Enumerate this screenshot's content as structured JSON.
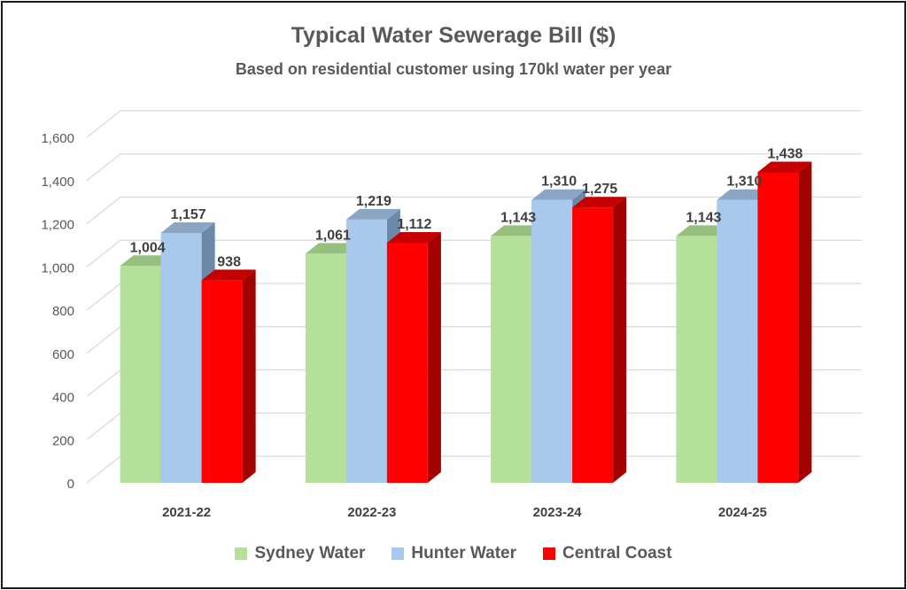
{
  "chart_data": {
    "type": "bar",
    "title": "Typical Water Sewerage Bill ($)",
    "subtitle": "Based on residential customer using 170kl water per year",
    "categories": [
      "2021-22",
      "2022-23",
      "2023-24",
      "2024-25"
    ],
    "series": [
      {
        "name": "Sydney Water",
        "values": [
          1004,
          1061,
          1143,
          1143
        ],
        "labels": [
          "1,004",
          "1,061",
          "1,143",
          "1,143"
        ],
        "color": "#b4e09a",
        "side": "#7fa96a",
        "top": "#97c07e"
      },
      {
        "name": "Hunter Water",
        "values": [
          1157,
          1219,
          1310,
          1310
        ],
        "labels": [
          "1,157",
          "1,219",
          "1,310",
          "1,310"
        ],
        "color": "#a8c8ec",
        "side": "#6c8aa8",
        "top": "#8aa6c4"
      },
      {
        "name": "Central Coast",
        "values": [
          938,
          1112,
          1275,
          1438
        ],
        "labels": [
          "938",
          "1,112",
          "1,275",
          "1,438"
        ],
        "color": "#ff0000",
        "side": "#a30000",
        "top": "#c40000"
      }
    ],
    "ylim": [
      0,
      1600
    ],
    "yticks": [
      0,
      200,
      400,
      600,
      800,
      1000,
      1200,
      1400,
      1600
    ],
    "ytick_labels": [
      "0",
      "200",
      "400",
      "600",
      "800",
      "1,000",
      "1,200",
      "1,400",
      "1,600"
    ],
    "xlabel": "",
    "ylabel": "",
    "grid": true,
    "legend_position": "bottom"
  }
}
